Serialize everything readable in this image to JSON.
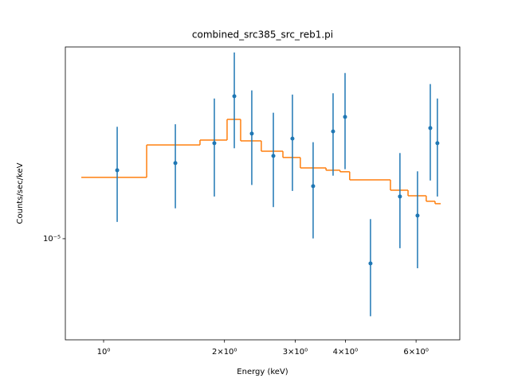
{
  "chart_data": {
    "type": "errorbar-step",
    "title": "combined_src385_src_reb1.pi",
    "xlabel": "Energy (keV)",
    "ylabel": "Counts/sec/keV",
    "xscale": "log",
    "yscale": "log",
    "xlim": [
      0.803,
      7.71
    ],
    "ylim": [
      6.92e-06,
      2.01e-05
    ],
    "xticks": [
      {
        "value": 1,
        "label": "10⁰"
      },
      {
        "value": 2,
        "label": "2×10⁰"
      },
      {
        "value": 3,
        "label": "3×10⁰"
      },
      {
        "value": 4,
        "label": "4×10⁰"
      },
      {
        "value": 6,
        "label": "6×10⁰"
      }
    ],
    "yticks": [
      {
        "value": 1e-05,
        "label": "10⁻⁵"
      }
    ],
    "data": {
      "color": "#1f77b4",
      "x": [
        1.081,
        1.509,
        1.887,
        2.116,
        2.339,
        2.647,
        2.953,
        3.325,
        3.728,
        3.993,
        4.62,
        5.47,
        6.05,
        6.51,
        6.78
      ],
      "values": [
        1.283e-05,
        1.317e-05,
        1.416e-05,
        1.68e-05,
        1.466e-05,
        1.352e-05,
        1.44e-05,
        1.211e-05,
        1.478e-05,
        1.558e-05,
        9.14e-06,
        1.166e-05,
        1.088e-05,
        1.496e-05,
        1.416e-05
      ],
      "yerr": [
        2.2e-06,
        2e-06,
        2.5e-06,
        2.9e-06,
        2.5e-06,
        2.3e-06,
        2.5e-06,
        2.1e-06,
        2.2e-06,
        2.7e-06,
        1.6e-06,
        2e-06,
        1.9e-06,
        2.6e-06,
        2.5e-06
      ]
    },
    "model": {
      "color": "#ff7f0e",
      "edges": [
        0.88,
        1.28,
        1.738,
        2.03,
        2.194,
        2.47,
        2.796,
        3.09,
        3.58,
        3.88,
        4.1,
        5.18,
        5.73,
        6.36,
        6.69,
        6.91
      ],
      "values": [
        1.25e-05,
        1.407e-05,
        1.432e-05,
        1.544e-05,
        1.428e-05,
        1.375e-05,
        1.344e-05,
        1.294e-05,
        1.283e-05,
        1.276e-05,
        1.239e-05,
        1.193e-05,
        1.169e-05,
        1.146e-05,
        1.136e-05
      ]
    }
  }
}
